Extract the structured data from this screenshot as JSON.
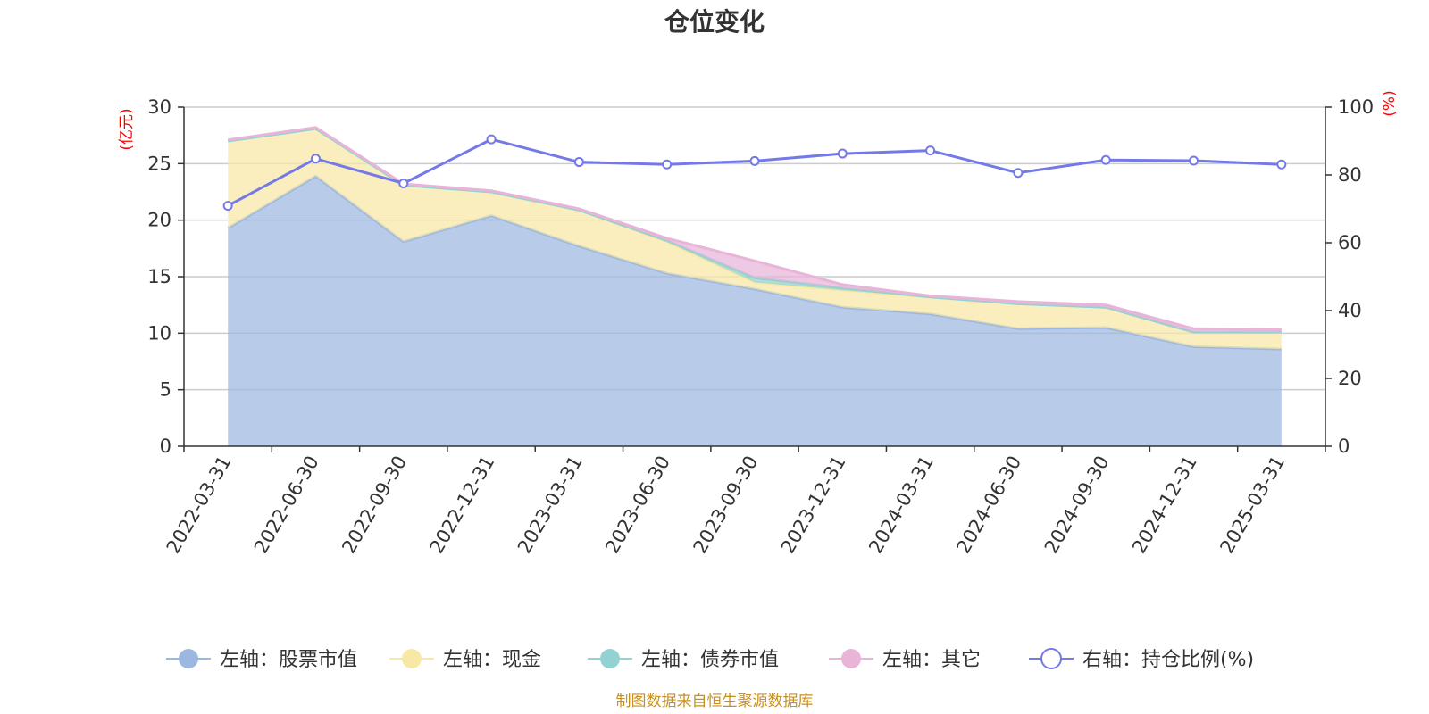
{
  "chart_data": {
    "type": "area",
    "title": "仓位变化",
    "source": "制图数据来自恒生聚源数据库",
    "left_axis": {
      "unit": "(亿元)",
      "min": 0,
      "max": 30,
      "ticks": [
        "0",
        "5",
        "10",
        "15",
        "20",
        "25",
        "30"
      ]
    },
    "right_axis": {
      "unit": "(%)",
      "min": 0,
      "max": 100,
      "ticks": [
        "0",
        "20",
        "40",
        "60",
        "80",
        "100"
      ]
    },
    "grid": true,
    "legend_position": "bottom",
    "categories": [
      "2022-03-31",
      "2022-06-30",
      "2022-09-30",
      "2022-12-31",
      "2023-03-31",
      "2023-06-30",
      "2023-09-30",
      "2023-12-31",
      "2024-03-31",
      "2024-06-30",
      "2024-09-30",
      "2024-12-31",
      "2025-03-31"
    ],
    "series": [
      {
        "name": "左轴：股票市值",
        "axis": "left",
        "kind": "area",
        "color": "#9cb8e0",
        "values": [
          19.3,
          23.9,
          18.1,
          20.4,
          17.7,
          15.3,
          13.9,
          12.3,
          11.7,
          10.4,
          10.5,
          8.8,
          8.6
        ]
      },
      {
        "name": "左轴：现金",
        "axis": "left",
        "kind": "area",
        "color": "#f8e8a6",
        "values": [
          7.7,
          4.2,
          5.0,
          2.1,
          3.2,
          2.8,
          0.6,
          1.5,
          1.5,
          2.2,
          1.8,
          1.3,
          1.5
        ]
      },
      {
        "name": "左轴：债券市值",
        "axis": "left",
        "kind": "area",
        "color": "#93d2d2",
        "values": [
          0,
          0,
          0,
          0,
          0,
          0.1,
          0.4,
          0.2,
          0,
          0,
          0,
          0,
          0
        ]
      },
      {
        "name": "左轴：其它",
        "axis": "left",
        "kind": "area",
        "color": "#e8b4d8",
        "values": [
          0.1,
          0.1,
          0.1,
          0.1,
          0.1,
          0.2,
          1.5,
          0.3,
          0.1,
          0.2,
          0.2,
          0.3,
          0.2
        ]
      },
      {
        "name": "右轴：持仓比例(%)",
        "axis": "right",
        "kind": "line",
        "color": "#7479e8",
        "values": [
          70.9,
          84.8,
          77.5,
          90.5,
          83.8,
          83.1,
          84.1,
          86.3,
          87.2,
          80.6,
          84.4,
          84.2,
          83.1
        ]
      }
    ]
  }
}
